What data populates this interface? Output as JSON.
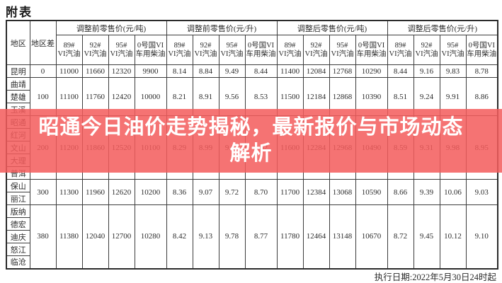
{
  "page": {
    "title": "附表",
    "footer": "执行日期:2022年5月30日24时起",
    "background_color": "#ffffff",
    "text_color": "#2b2b2b"
  },
  "banner": {
    "title_line1": "昭通今日油价走势揭秘，最新报价与市场动态",
    "title_line2": "解析",
    "accent_color": "#f35c5c",
    "text_color": "#ffffff"
  },
  "table": {
    "region_header": "地区",
    "diff_header": "地区差",
    "group_labels": [
      "调整前零售价(元/吨)",
      "调整前零售价(元/升)",
      "调整后零售价(元/吨)",
      "调整后零售价(元/升)"
    ],
    "products": [
      [
        "89#",
        "VI汽油"
      ],
      [
        "92#",
        "VI汽油"
      ],
      [
        "95#",
        "VI汽油"
      ],
      [
        "0号国VI",
        "车用柴油"
      ]
    ],
    "row_groups": [
      {
        "regions": [
          "昆明"
        ],
        "diff": "0",
        "values": [
          "11000",
          "11660",
          "12320",
          "9900",
          "8.14",
          "8.84",
          "9.49",
          "8.44",
          "11400",
          "12084",
          "12768",
          "10290",
          "8.44",
          "9.16",
          "9.83",
          "8.78"
        ]
      },
      {
        "regions": [
          "曲靖",
          "楚雄",
          "玉溪"
        ],
        "diff": "100",
        "values": [
          "11100",
          "11760",
          "12420",
          "10000",
          "8.21",
          "8.91",
          "9.56",
          "8.53",
          "11500",
          "12184",
          "12868",
          "10390",
          "8.51",
          "9.24",
          "9.91",
          "8.86"
        ]
      },
      {
        "regions": [
          "昭通",
          "红河",
          "文山",
          "大理",
          "普洱"
        ],
        "diff": "200",
        "values": [
          "11200",
          "11860",
          "12520",
          "10100",
          "8.29",
          "8.99",
          "9.64",
          "8.62",
          "11600",
          "12284",
          "12968",
          "10490",
          "8.59",
          "9.31",
          "9.98",
          "8.95"
        ]
      },
      {
        "regions": [
          "保山",
          "丽江"
        ],
        "diff": "300",
        "values": [
          "11300",
          "11960",
          "12620",
          "10200",
          "8.36",
          "9.07",
          "9.72",
          "8.70",
          "11700",
          "12384",
          "13068",
          "10590",
          "8.66",
          "9.39",
          "10.06",
          "9.03"
        ]
      },
      {
        "regions": [
          "版纳",
          "德宏",
          "迪庆",
          "怒江",
          "临沧"
        ],
        "diff": "380",
        "values": [
          "11380",
          "12040",
          "12700",
          "10280",
          "8.42",
          "9.13",
          "9.78",
          "8.77",
          "11780",
          "12464",
          "13148",
          "10670",
          "8.72",
          "9.45",
          "10.12",
          "9.10"
        ]
      }
    ]
  }
}
